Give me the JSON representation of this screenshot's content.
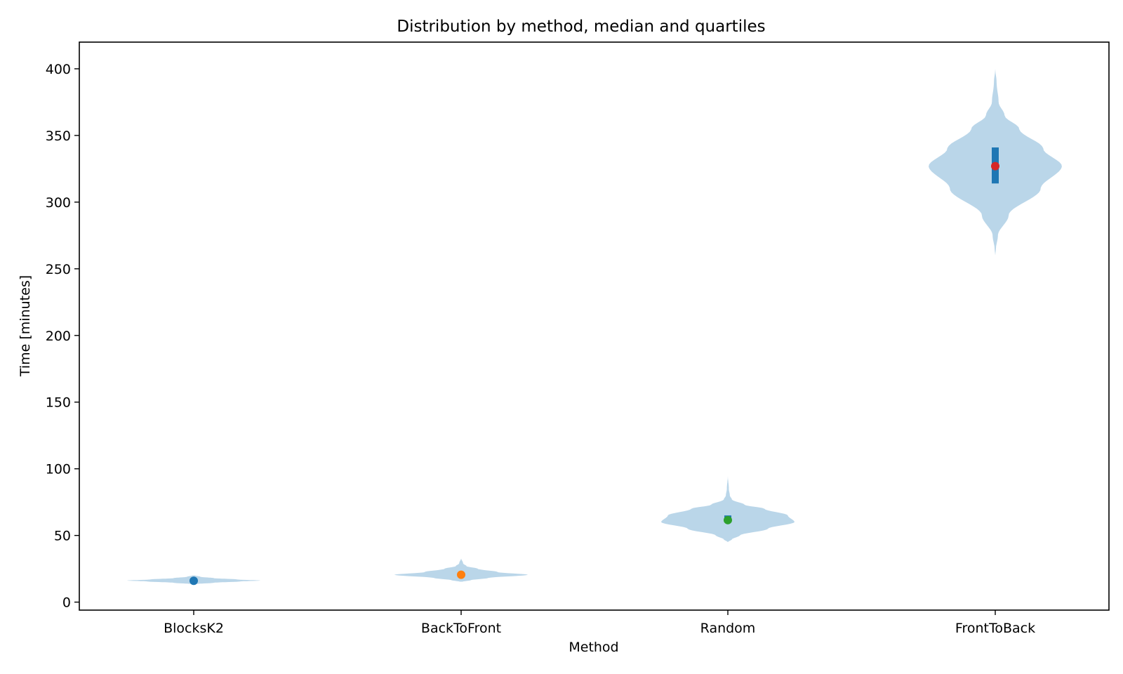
{
  "chart_data": {
    "type": "violin",
    "title": "Distribution by method, median and quartiles",
    "xlabel": "Method",
    "ylabel": "Time [minutes]",
    "ylim": [
      -6,
      420
    ],
    "yticks": [
      0,
      50,
      100,
      150,
      200,
      250,
      300,
      350,
      400
    ],
    "grid": false,
    "categories": [
      "BlocksK2",
      "BackToFront",
      "Random",
      "FrontToBack"
    ],
    "violin_color": "#bad6e9",
    "quartile_color": "#1f77b4",
    "series": [
      {
        "category": "BlocksK2",
        "median": 16,
        "q1": 15.3,
        "q3": 16.8,
        "min": 13.6,
        "max": 20,
        "marker_color": "#1f77b4",
        "profile": [
          [
            13.6,
            0.05
          ],
          [
            14.5,
            0.3
          ],
          [
            15.5,
            0.7
          ],
          [
            16.2,
            1.0
          ],
          [
            17,
            0.65
          ],
          [
            18,
            0.3
          ],
          [
            19,
            0.1
          ],
          [
            20,
            0.02
          ]
        ]
      },
      {
        "category": "BackToFront",
        "median": 20.5,
        "q1": 19.5,
        "q3": 21.5,
        "min": 15.3,
        "max": 33,
        "marker_color": "#ff7f0e",
        "profile": [
          [
            15.3,
            0.02
          ],
          [
            16.5,
            0.15
          ],
          [
            18,
            0.4
          ],
          [
            20.5,
            1.0
          ],
          [
            22.5,
            0.55
          ],
          [
            25,
            0.25
          ],
          [
            27,
            0.08
          ],
          [
            29,
            0.03
          ],
          [
            33,
            0.0
          ]
        ]
      },
      {
        "category": "Random",
        "median": 61.5,
        "q1": 60.5,
        "q3": 65,
        "min": 45,
        "max": 95,
        "marker_color": "#2ca02c",
        "profile": [
          [
            45,
            0.0
          ],
          [
            47,
            0.06
          ],
          [
            50,
            0.18
          ],
          [
            55,
            0.6
          ],
          [
            60,
            1.0
          ],
          [
            65,
            0.9
          ],
          [
            70,
            0.55
          ],
          [
            73,
            0.25
          ],
          [
            77,
            0.06
          ],
          [
            80,
            0.03
          ],
          [
            85,
            0.015
          ],
          [
            95,
            0.0
          ]
        ]
      },
      {
        "category": "FrontToBack",
        "median": 327,
        "q1": 314,
        "q3": 341,
        "min": 260,
        "max": 400,
        "marker_color": "#d62728",
        "profile": [
          [
            260,
            0.0
          ],
          [
            265,
            0.01
          ],
          [
            275,
            0.04
          ],
          [
            290,
            0.2
          ],
          [
            310,
            0.68
          ],
          [
            327,
            1.0
          ],
          [
            340,
            0.72
          ],
          [
            355,
            0.36
          ],
          [
            365,
            0.14
          ],
          [
            375,
            0.05
          ],
          [
            390,
            0.02
          ],
          [
            400,
            0.0
          ]
        ]
      }
    ]
  }
}
